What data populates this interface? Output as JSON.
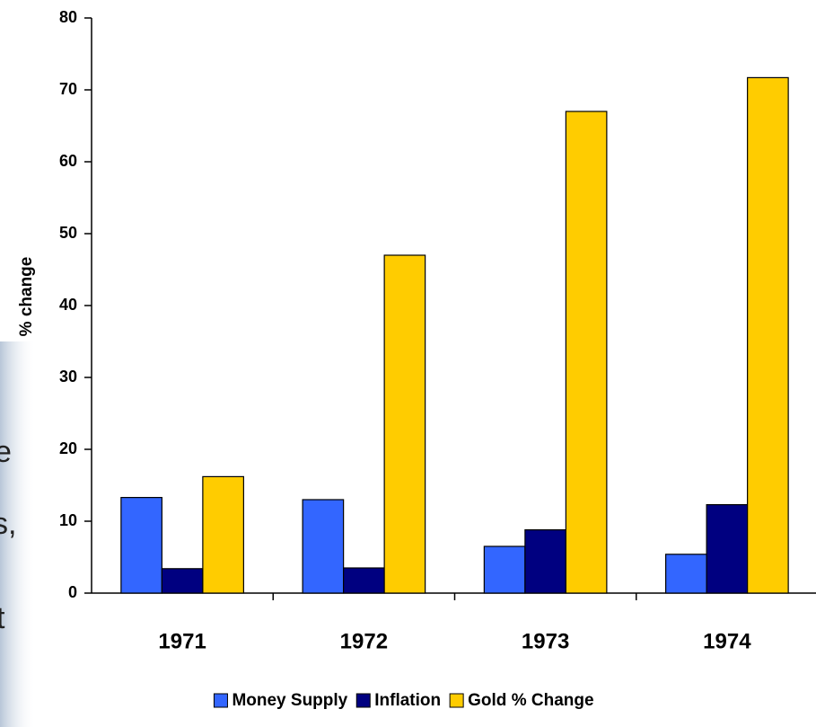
{
  "background_text": [
    "e",
    "s,",
    "t"
  ],
  "chart_data": {
    "type": "bar",
    "ylabel": "% change",
    "categories": [
      "1971",
      "1972",
      "1973",
      "1974"
    ],
    "series": [
      {
        "name": "Money Supply",
        "color": "#3366ff",
        "values": [
          13.3,
          13,
          6.5,
          5.4
        ]
      },
      {
        "name": "Inflation",
        "color": "#000080",
        "values": [
          3.4,
          3.5,
          8.8,
          12.3
        ]
      },
      {
        "name": "Gold % Change",
        "color": "#ffcc00",
        "values": [
          16.2,
          47,
          67,
          71.7
        ]
      }
    ],
    "ylim": [
      0,
      80
    ],
    "yticks": [
      0,
      10,
      20,
      30,
      40,
      50,
      60,
      70,
      80
    ],
    "grid": false,
    "legend": "bottom"
  }
}
